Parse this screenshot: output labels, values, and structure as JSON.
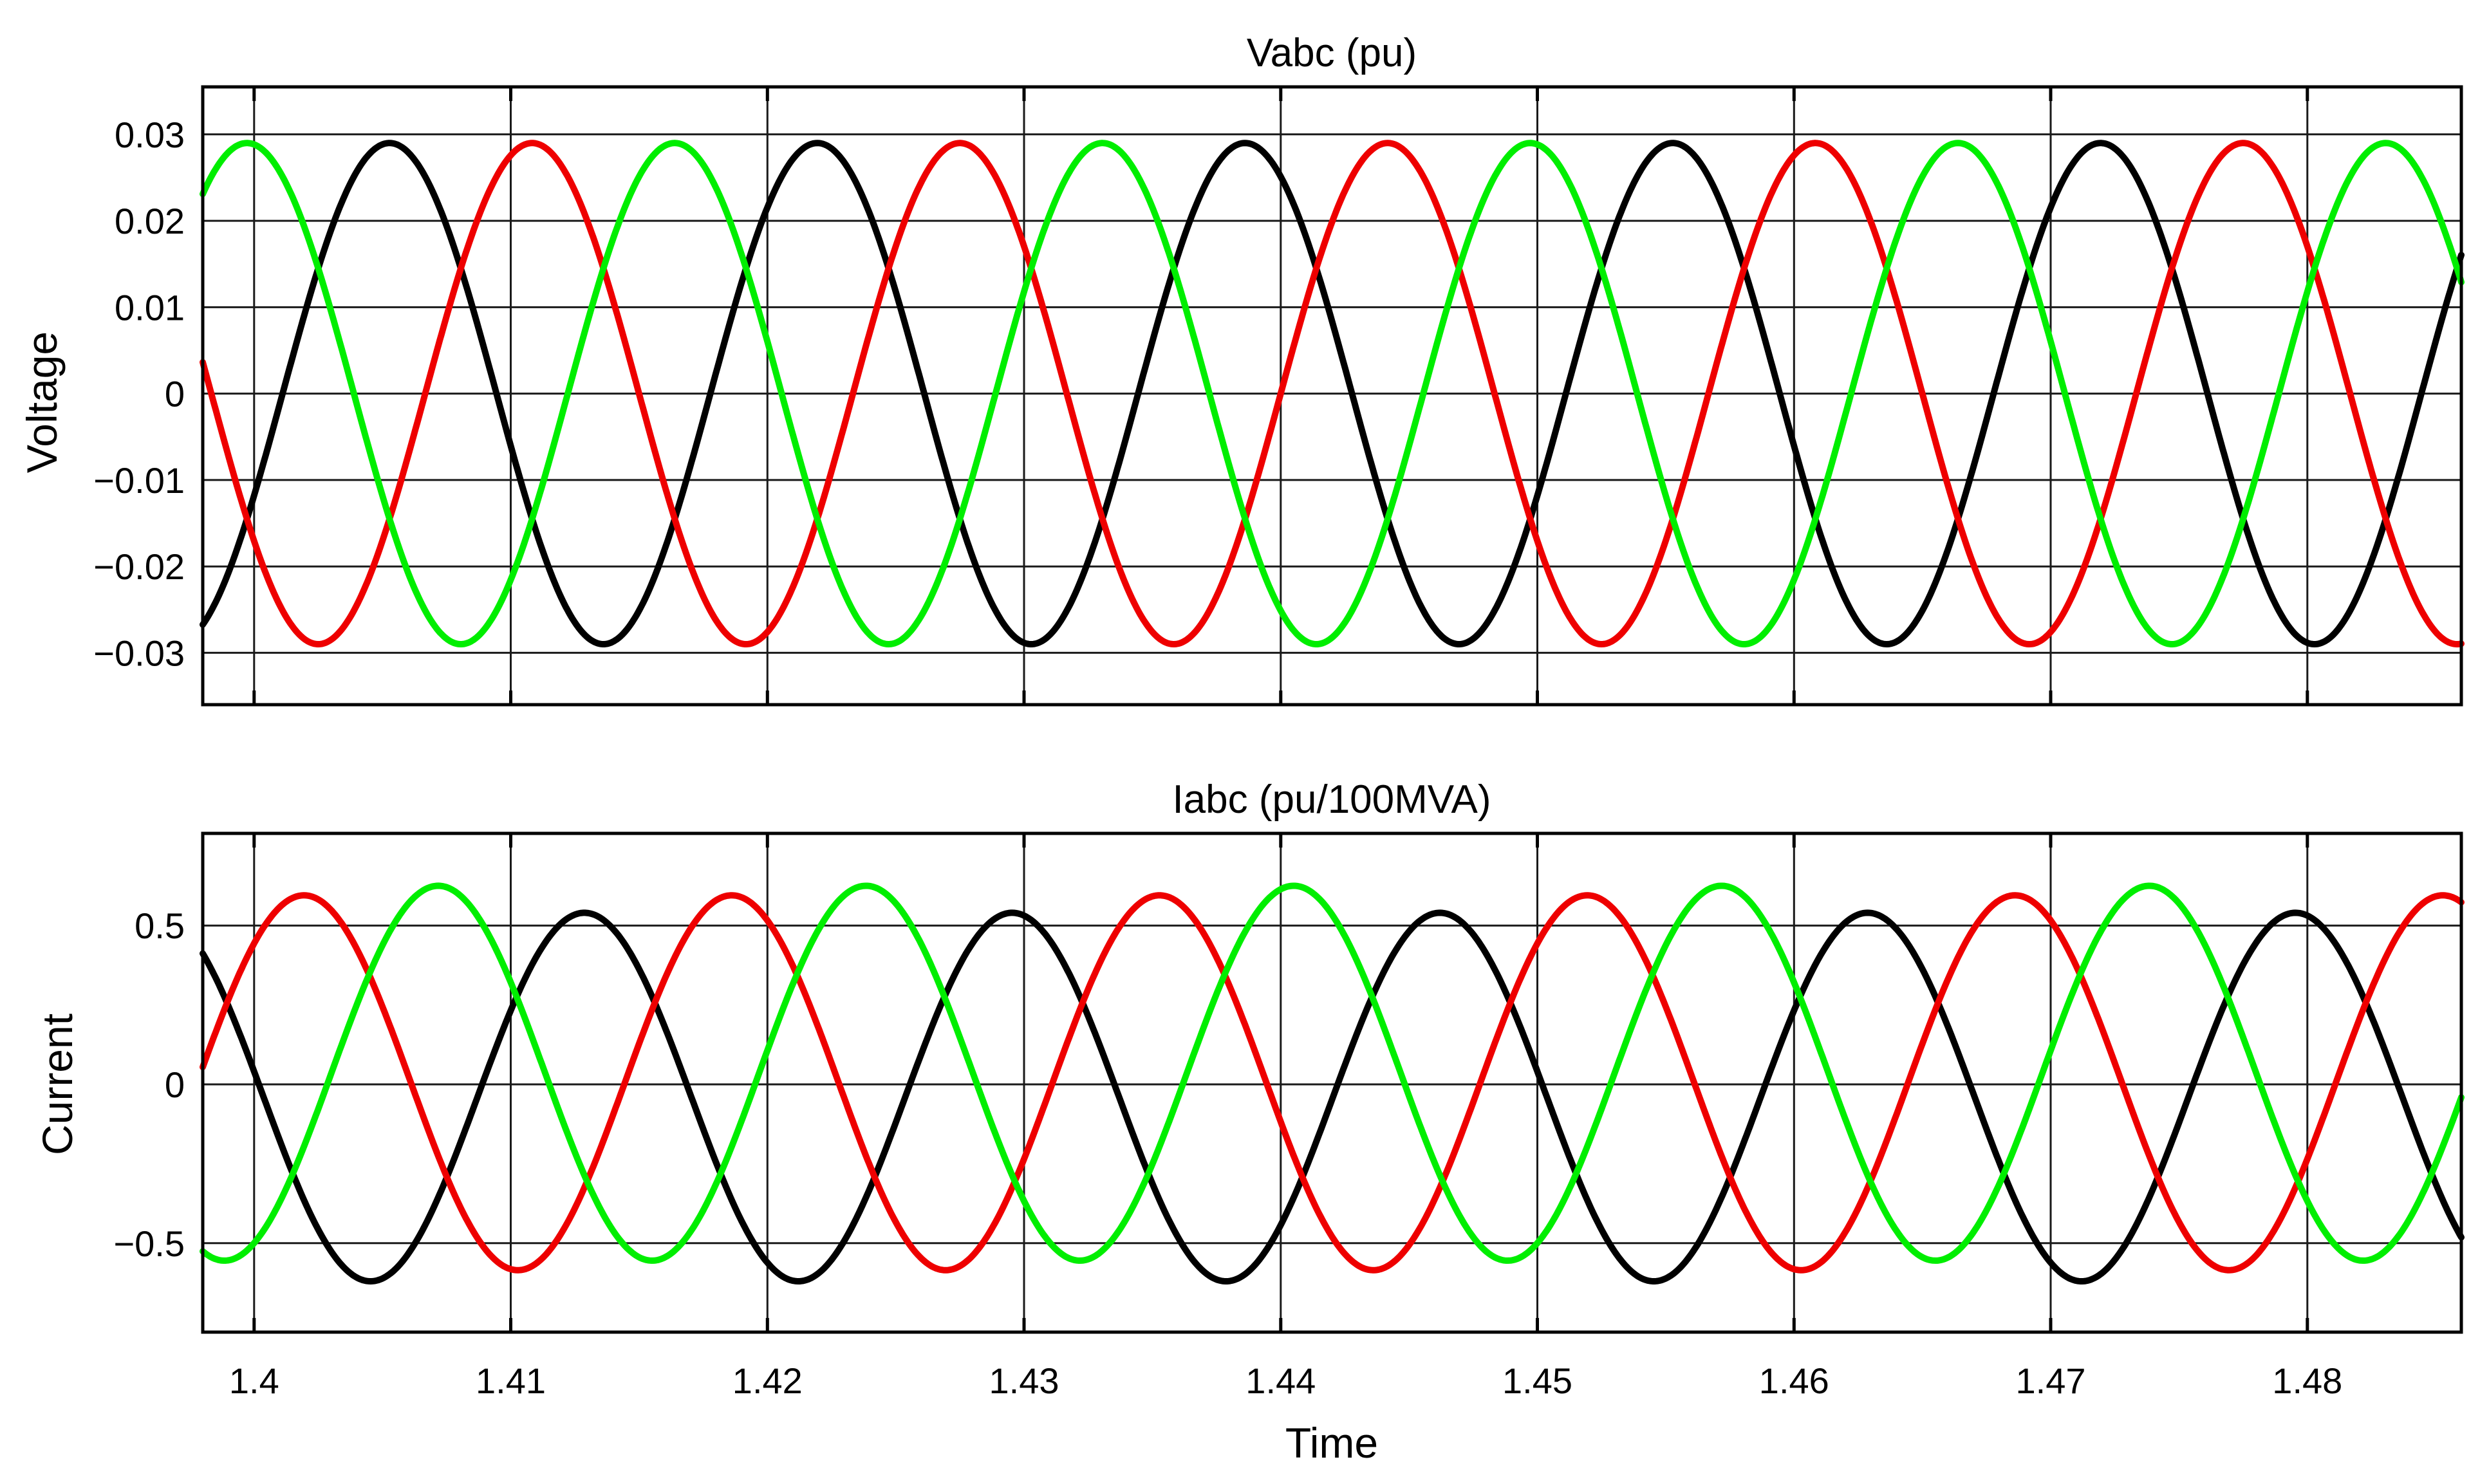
{
  "colors": {
    "phase_a": "#000000",
    "phase_b": "#ee0000",
    "phase_c": "#00ee00"
  },
  "chart_data": [
    {
      "type": "line",
      "title": "Vabc (pu)",
      "xlabel": "",
      "ylabel": "Voltage",
      "xlim": [
        1.398,
        1.486
      ],
      "ylim": [
        -0.036,
        0.0355
      ],
      "x_ticks": [
        1.4,
        1.41,
        1.42,
        1.43,
        1.44,
        1.45,
        1.46,
        1.47,
        1.48
      ],
      "y_ticks": [
        -0.03,
        -0.02,
        -0.01,
        0,
        0.01,
        0.02,
        0.03
      ],
      "y_tick_labels": [
        "−0.03",
        "−0.02",
        "−0.01",
        "0",
        "0.01",
        "0.02",
        "0.03"
      ],
      "grid": true,
      "series": [
        {
          "color": "#000000",
          "waveform": "sine",
          "amplitude": 0.029,
          "frequency_hz": 60,
          "phase_deg": -24
        },
        {
          "color": "#ee0000",
          "waveform": "sine",
          "amplitude": 0.029,
          "frequency_hz": 60,
          "phase_deg": -144
        },
        {
          "color": "#00ee00",
          "waveform": "sine",
          "amplitude": 0.029,
          "frequency_hz": 60,
          "phase_deg": 96
        }
      ]
    },
    {
      "type": "line",
      "title": "Iabc (pu/100MVA)",
      "xlabel": "Time",
      "ylabel": "Current",
      "xlim": [
        1.398,
        1.486
      ],
      "ylim": [
        -0.78,
        0.79
      ],
      "x_ticks": [
        1.4,
        1.41,
        1.42,
        1.43,
        1.44,
        1.45,
        1.46,
        1.47,
        1.48
      ],
      "x_tick_labels": [
        "1.4",
        "1.41",
        "1.42",
        "1.43",
        "1.44",
        "1.45",
        "1.46",
        "1.47",
        "1.48"
      ],
      "y_ticks": [
        -0.5,
        0,
        0.5
      ],
      "y_tick_labels": [
        "−0.5",
        "0",
        "0.5"
      ],
      "grid": true,
      "series": [
        {
          "color": "#000000",
          "waveform": "sine",
          "amplitude": 0.58,
          "offset": -0.04,
          "frequency_hz": 60,
          "phase_deg": 172
        },
        {
          "color": "#ee0000",
          "waveform": "sine",
          "amplitude": 0.59,
          "offset": 0.005,
          "frequency_hz": 60,
          "phase_deg": 48
        },
        {
          "color": "#00ee00",
          "waveform": "sine",
          "amplitude": 0.59,
          "offset": 0.035,
          "frequency_hz": 60,
          "phase_deg": -65
        }
      ]
    }
  ]
}
